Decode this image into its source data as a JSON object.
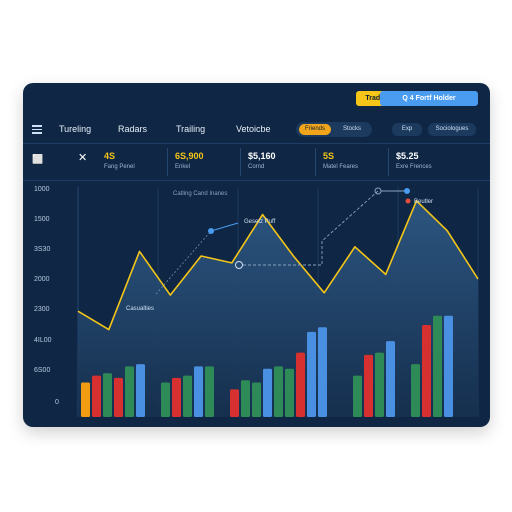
{
  "toolbar": {
    "btn_yellow": "Trading",
    "btn_blue": "Q 4 Fortf Holder"
  },
  "nav": {
    "items": [
      "Tureling",
      "Radars",
      "Trailing",
      "Vetoicbe"
    ],
    "seg_on": "Friends",
    "seg_off": "Stocks",
    "pill1": "Exp",
    "pill2": "Sociologues"
  },
  "stats": [
    {
      "value": "4S",
      "label": "Fang Penel",
      "color": "#f5c518"
    },
    {
      "value": "6S,900",
      "label": "Enkel",
      "color": "#f5c518"
    },
    {
      "value": "$5,160",
      "label": "Cornd",
      "color": "#ffffff"
    },
    {
      "value": "5S",
      "label": "Matel Feares",
      "color": "#f5c518"
    },
    {
      "value": "$5.25",
      "label": "Exre Frences",
      "color": "#ffffff"
    }
  ],
  "chart_data": {
    "type": "line",
    "title": "Catling Cand Inanes",
    "y_ticks": [
      "1000",
      "1500",
      "3S30",
      "2000",
      "2300",
      "4IL00",
      "6S00",
      "0"
    ],
    "line_values": [
      0.46,
      0.38,
      0.72,
      0.53,
      0.7,
      0.67,
      0.88,
      0.7,
      0.54,
      0.74,
      0.62,
      0.94,
      0.81,
      0.6
    ],
    "bars": [
      {
        "v": 0.15,
        "c": "#f39c12"
      },
      {
        "v": 0.18,
        "c": "#d63031"
      },
      {
        "v": 0.19,
        "c": "#2e8b57"
      },
      {
        "v": 0.17,
        "c": "#d63031"
      },
      {
        "v": 0.22,
        "c": "#2e8b57"
      },
      {
        "v": 0.23,
        "c": "#4a90e2"
      },
      {
        "v": 0.15,
        "c": "#2e8b57"
      },
      {
        "v": 0.17,
        "c": "#d63031"
      },
      {
        "v": 0.18,
        "c": "#2e8b57"
      },
      {
        "v": 0.22,
        "c": "#4a90e2"
      },
      {
        "v": 0.22,
        "c": "#2e8b57"
      },
      {
        "v": 0.12,
        "c": "#d63031"
      },
      {
        "v": 0.16,
        "c": "#2e8b57"
      },
      {
        "v": 0.15,
        "c": "#2e8b57"
      },
      {
        "v": 0.21,
        "c": "#4a90e2"
      },
      {
        "v": 0.22,
        "c": "#2e8b57"
      },
      {
        "v": 0.21,
        "c": "#2e8b57"
      },
      {
        "v": 0.28,
        "c": "#d63031"
      },
      {
        "v": 0.37,
        "c": "#4a90e2"
      },
      {
        "v": 0.39,
        "c": "#4a90e2"
      },
      {
        "v": 0.18,
        "c": "#2e8b57"
      },
      {
        "v": 0.27,
        "c": "#d63031"
      },
      {
        "v": 0.28,
        "c": "#2e8b57"
      },
      {
        "v": 0.33,
        "c": "#4a90e2"
      },
      {
        "v": 0.23,
        "c": "#2e8b57"
      },
      {
        "v": 0.4,
        "c": "#d63031"
      },
      {
        "v": 0.44,
        "c": "#2e8b57"
      },
      {
        "v": 0.44,
        "c": "#4a90e2"
      }
    ],
    "annotations": [
      {
        "text": "Gesetz Puff"
      },
      {
        "text": "Casualties"
      },
      {
        "text": "Beutler"
      }
    ]
  }
}
